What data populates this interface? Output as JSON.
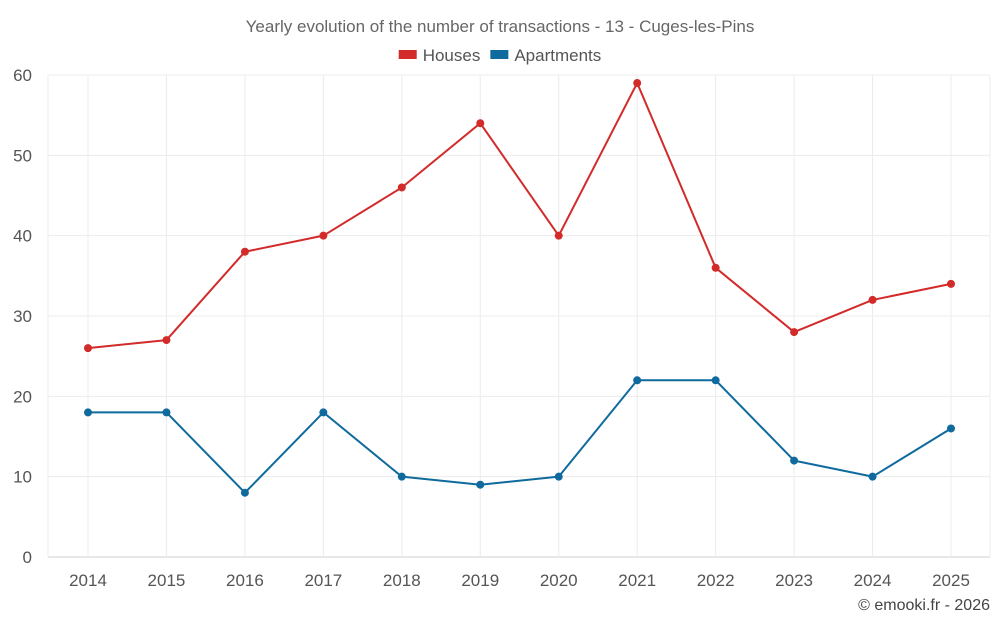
{
  "chart_data": {
    "type": "line",
    "title": "Yearly evolution of the number of transactions - 13 - Cuges-les-Pins",
    "xlabel": "",
    "ylabel": "",
    "categories": [
      "2014",
      "2015",
      "2016",
      "2017",
      "2018",
      "2019",
      "2020",
      "2021",
      "2022",
      "2023",
      "2024",
      "2025"
    ],
    "ylim": [
      0,
      60
    ],
    "yticks": [
      0,
      10,
      20,
      30,
      40,
      50,
      60
    ],
    "grid": true,
    "legend_position": "top-center",
    "series": [
      {
        "name": "Houses",
        "color": "#d32a2a",
        "values": [
          26,
          27,
          38,
          40,
          46,
          54,
          40,
          59,
          36,
          28,
          32,
          34
        ]
      },
      {
        "name": "Apartments",
        "color": "#0f6a9e",
        "values": [
          18,
          18,
          8,
          18,
          10,
          9,
          10,
          22,
          22,
          12,
          10,
          16
        ]
      }
    ]
  },
  "footer": {
    "credit": "© emooki.fr - 2026"
  }
}
